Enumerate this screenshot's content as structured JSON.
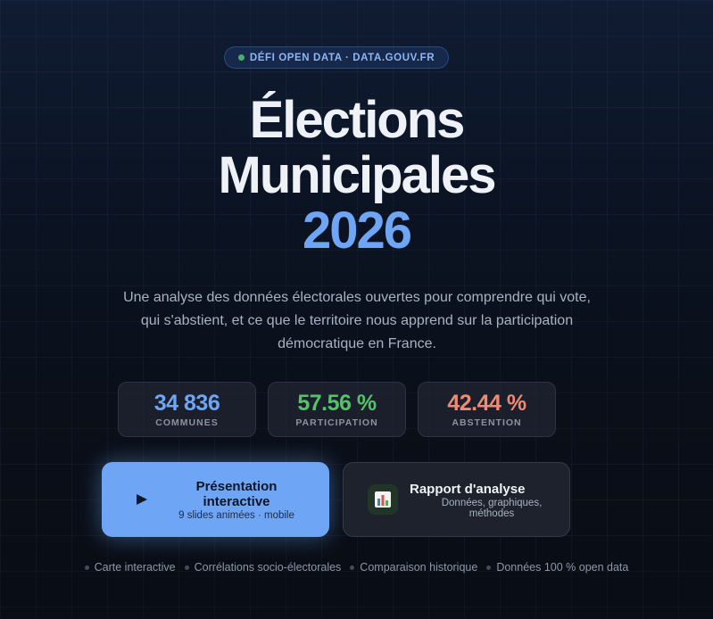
{
  "badge": {
    "text": "DÉFI OPEN DATA · DATA.GOUV.FR",
    "dot_color": "#4cae6a"
  },
  "hero": {
    "title_line1": "Élections",
    "title_line2": "Municipales",
    "title_year": "2026",
    "subtitle": "Une analyse des données électorales ouvertes pour comprendre qui vote, qui s'abstient, et ce que le territoire nous apprend sur la participation démocratique en France."
  },
  "stats": [
    {
      "value": "34 836",
      "label": "COMMUNES",
      "color": "#6ea6f5"
    },
    {
      "value": "57.56 %",
      "label": "PARTICIPATION",
      "color": "#55c26a"
    },
    {
      "value": "42.44 %",
      "label": "ABSTENTION",
      "color": "#ef8a73"
    }
  ],
  "actions": {
    "presentation": {
      "title": "Présentation interactive",
      "subtitle": "9 slides animées · mobile",
      "icon": "play-icon"
    },
    "report": {
      "title": "Rapport d'analyse",
      "subtitle": "Données, graphiques, méthodes",
      "icon": "bar-chart-icon"
    }
  },
  "features": [
    "Carte interactive",
    "Corrélations socio-électorales",
    "Comparaison historique",
    "Données 100 % open data"
  ],
  "colors": {
    "accent": "#6ea6f5",
    "background": "#0b1220"
  }
}
